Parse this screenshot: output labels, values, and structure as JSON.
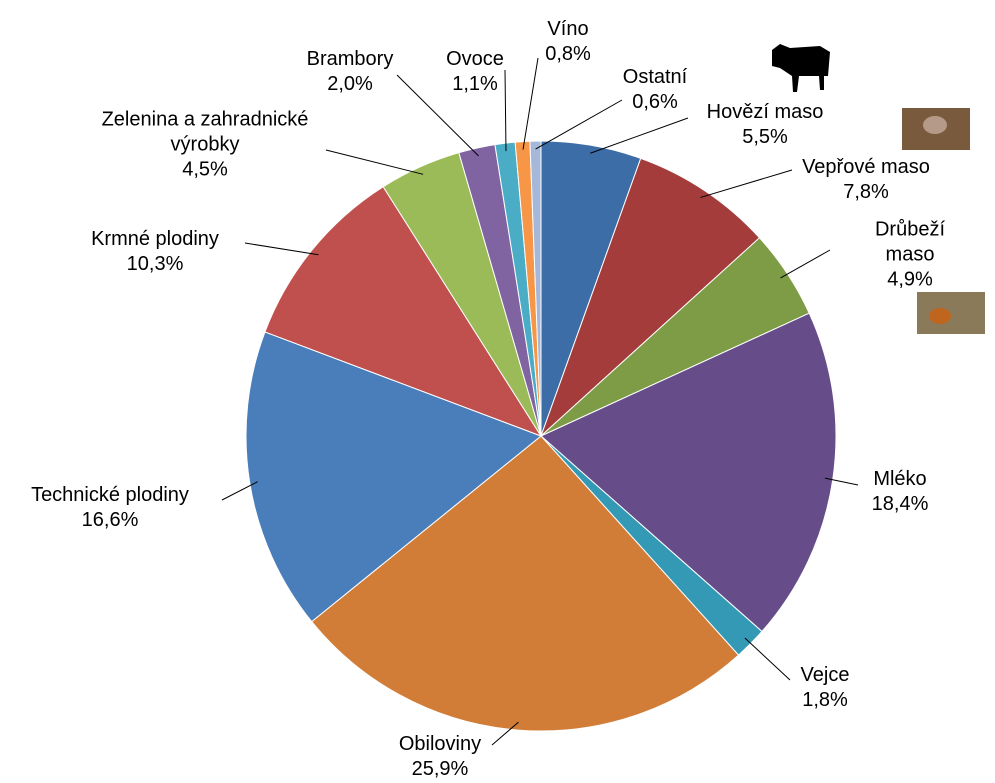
{
  "chart_data": {
    "type": "pie",
    "categories": [
      "Hovězí maso",
      "Vepřové maso",
      "Drůbeží maso",
      "Mléko",
      "Vejce",
      "Obiloviny",
      "Technické plodiny",
      "Krmné plodiny",
      "Zelenina a zahradnické výrobky",
      "Brambory",
      "Ovoce",
      "Víno",
      "Ostatní"
    ],
    "values": [
      5.5,
      7.8,
      4.9,
      18.4,
      1.8,
      25.9,
      16.6,
      10.3,
      4.5,
      2.0,
      1.1,
      0.8,
      0.6
    ],
    "value_labels": [
      "5,5%",
      "7,8%",
      "4,9%",
      "18,4%",
      "1,8%",
      "25,9%",
      "16,6%",
      "10,3%",
      "4,5%",
      "2,0%",
      "1,1%",
      "0,8%",
      "0,6%"
    ],
    "colors": [
      "#3d6da6",
      "#a33c3a",
      "#7e9c45",
      "#664d8a",
      "#3399b5",
      "#d17d38",
      "#4a7ebb",
      "#c0504d",
      "#9bbb59",
      "#8064a2",
      "#4bacc6",
      "#f79646",
      "#a5b8da"
    ]
  }
}
